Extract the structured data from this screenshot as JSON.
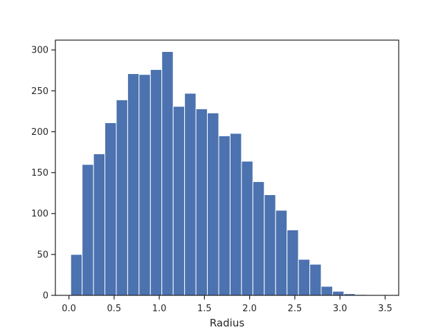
{
  "chart_data": {
    "type": "bar",
    "title": "",
    "xlabel": "Radius",
    "ylabel": "",
    "bar_color": "#4c72b0",
    "edge_color": "#ffffff",
    "xlim": [
      -0.15,
      3.65
    ],
    "ylim": [
      0,
      312
    ],
    "xticks": [
      0.0,
      0.5,
      1.0,
      1.5,
      2.0,
      2.5,
      3.0,
      3.5
    ],
    "xtick_labels": [
      "0.0",
      "0.5",
      "1.0",
      "1.5",
      "2.0",
      "2.5",
      "3.0",
      "3.5"
    ],
    "yticks": [
      0,
      50,
      100,
      150,
      200,
      250,
      300
    ],
    "ytick_labels": [
      "0",
      "50",
      "100",
      "150",
      "200",
      "250",
      "300"
    ],
    "grid": false,
    "bin_edges": [
      0.02,
      0.146,
      0.272,
      0.398,
      0.524,
      0.65,
      0.776,
      0.902,
      1.028,
      1.154,
      1.28,
      1.406,
      1.532,
      1.658,
      1.784,
      1.91,
      2.036,
      2.162,
      2.288,
      2.414,
      2.54,
      2.666,
      2.792,
      2.918,
      3.044,
      3.17,
      3.296,
      3.422
    ],
    "values": [
      50,
      160,
      173,
      211,
      239,
      271,
      270,
      276,
      298,
      231,
      247,
      228,
      223,
      195,
      198,
      164,
      139,
      123,
      104,
      80,
      44,
      38,
      11,
      5,
      2,
      1,
      0
    ]
  }
}
